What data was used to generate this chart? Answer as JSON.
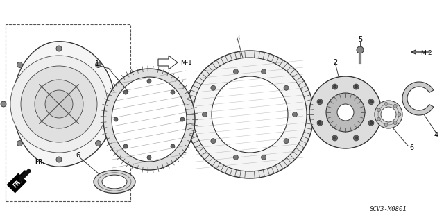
{
  "title": "",
  "diagram_id": "SCV3-M0801",
  "background_color": "#ffffff",
  "line_color": "#000000",
  "figsize": [
    6.4,
    3.2
  ],
  "dpi": 100,
  "parts": {
    "labels": [
      "1",
      "2",
      "3",
      "4",
      "5",
      "6",
      "6",
      "M-1",
      "M-2",
      "FR."
    ],
    "note_m1": "M-1",
    "note_m2": "M-2",
    "note_fr": "FR.",
    "diagram_code": "SCV3-M0801"
  },
  "colors": {
    "gear_fill": "#e8e8e8",
    "gear_stroke": "#222222",
    "housing_fill": "#f0f0f0",
    "housing_stroke": "#222222",
    "bearing_fill": "#d8d8d8",
    "bearing_stroke": "#222222",
    "ring_fill": "#cccccc",
    "ring_stroke": "#222222",
    "bolt_fill": "#aaaaaa",
    "bolt_stroke": "#222222",
    "dashed_line": "#555555",
    "arrow_fill": "#111111",
    "label_color": "#111111"
  }
}
